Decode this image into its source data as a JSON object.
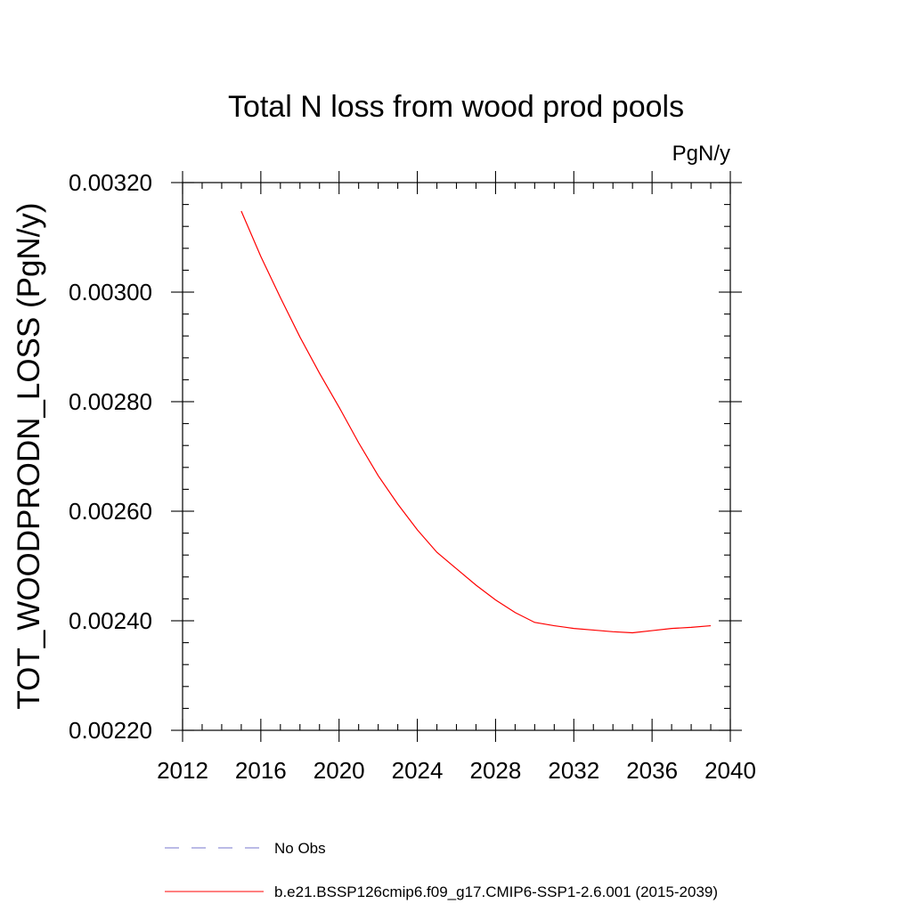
{
  "chart_data": {
    "type": "line",
    "title": "Total N loss from wood prod pools",
    "units_label": "PgN/y",
    "ylabel": "TOT_WOODPRODN_LOSS  (PgN/y)",
    "xlabel": "",
    "xlim": [
      2012,
      2040
    ],
    "ylim": [
      0.0022,
      0.0032
    ],
    "x_ticks": [
      2012,
      2016,
      2020,
      2024,
      2028,
      2032,
      2036,
      2040
    ],
    "y_ticks": [
      "0.00220",
      "0.00240",
      "0.00260",
      "0.00280",
      "0.00300",
      "0.00320"
    ],
    "grid": false,
    "legend_position": "bottom",
    "series": [
      {
        "name": "No Obs",
        "color": "#7777cc",
        "dash": "dashed",
        "x": [],
        "y": []
      },
      {
        "name": "b.e21.BSSP126cmip6.f09_g17.CMIP6-SSP1-2.6.001 (2015-2039)",
        "color": "#ff0000",
        "dash": "solid",
        "x": [
          2015,
          2016,
          2017,
          2018,
          2019,
          2020,
          2021,
          2022,
          2023,
          2024,
          2025,
          2026,
          2027,
          2028,
          2029,
          2030,
          2031,
          2032,
          2033,
          2034,
          2035,
          2036,
          2037,
          2038,
          2039
        ],
        "y": [
          0.003148,
          0.003065,
          0.00299,
          0.002918,
          0.002852,
          0.00279,
          0.002725,
          0.002665,
          0.002613,
          0.002566,
          0.002525,
          0.002495,
          0.002465,
          0.002438,
          0.002415,
          0.002397,
          0.002391,
          0.002386,
          0.002383,
          0.00238,
          0.002378,
          0.002382,
          0.002386,
          0.002388,
          0.002391
        ]
      }
    ]
  }
}
